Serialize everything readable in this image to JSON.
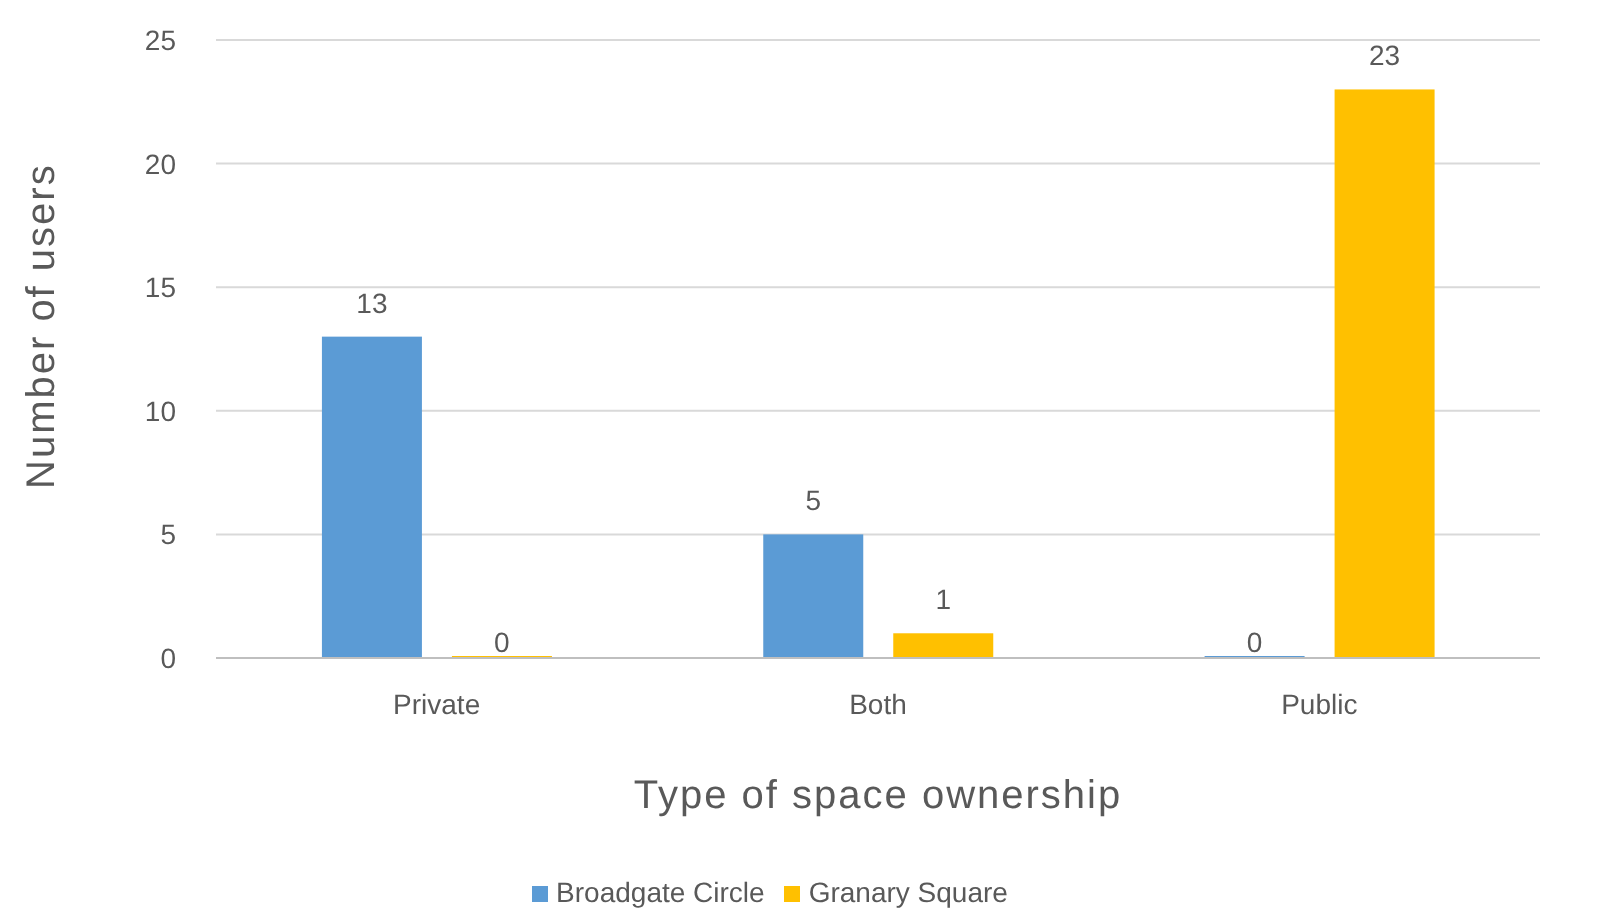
{
  "chart_data": {
    "type": "bar",
    "xlabel": "Type of space ownership",
    "ylabel": "Number of users",
    "categories": [
      "Private",
      "Both",
      "Public"
    ],
    "series": [
      {
        "name": "Broadgate Circle",
        "color": "#5b9bd5",
        "values": [
          13,
          5,
          0
        ]
      },
      {
        "name": "Granary Square",
        "color": "#ffc000",
        "values": [
          0,
          1,
          23
        ]
      }
    ],
    "ylim": [
      0,
      25
    ],
    "yticks": [
      0,
      5,
      10,
      15,
      20,
      25
    ],
    "grid": "y",
    "legend": "bottom",
    "data_labels": true
  }
}
